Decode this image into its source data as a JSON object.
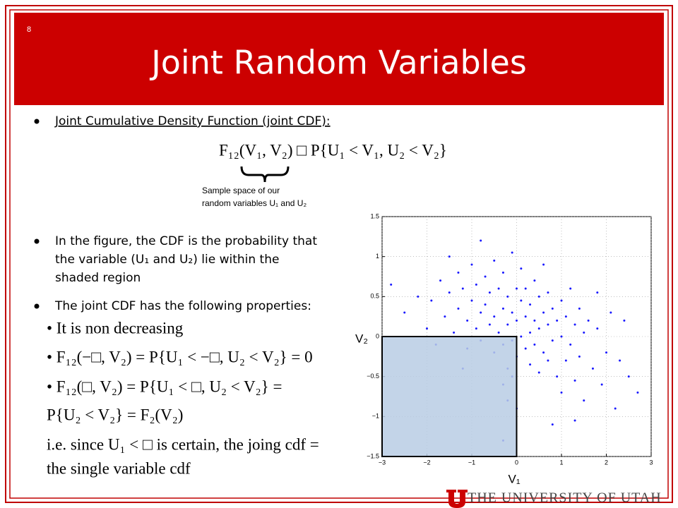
{
  "slide_number": "8",
  "title": "Joint Random Variables",
  "bullets": [
    {
      "lines": [
        "Joint Cumulative Density Function (joint CDF):"
      ]
    },
    {
      "lines": [
        "In the figure, the CDF is the probability that",
        "the variable (U₁ and U₂) lie within the",
        "shaded region"
      ]
    },
    {
      "lines": [
        "The joint CDF has the following properties:"
      ]
    }
  ],
  "formula": "F₁₂(V₁, V₂) □ P{U₁ < V₁, U₂ < V₂}",
  "annotation": [
    "Sample space of our",
    "random variables U₁ and U₂"
  ],
  "properties": [
    "• It is non decreasing",
    "• F₁₂(−□, V₂) = P{U₁ < −□, U₂ < V₂} = 0",
    "• F₁₂(□, V₂) = P{U₁ < □, U₂ < V₂} =",
    "P{U₂ < V₂} = F₂(V₂)",
    "i.e. since U₁ < □ is certain, the joing cdf =",
    "the single variable cdf"
  ],
  "footer": "THE UNIVERSITY OF UTAH",
  "chart_data": {
    "type": "scatter",
    "color": "#1a1aff",
    "grid": true,
    "xlim": [
      -3,
      3
    ],
    "ylim": [
      -1.5,
      1.5
    ],
    "xticks": [
      {
        "value": -3,
        "label": "−3"
      },
      {
        "value": -2,
        "label": "−2"
      },
      {
        "value": -1,
        "label": "−1"
      },
      0,
      1,
      2,
      3
    ],
    "yticks": [
      {
        "value": -1.5,
        "label": "−1.5"
      },
      {
        "value": -1,
        "label": "−1"
      },
      {
        "value": -0.5,
        "label": "−0.5"
      },
      0,
      0.5,
      1,
      1.5
    ],
    "region": {
      "x": [
        -3,
        0
      ],
      "y": [
        -1.5,
        0
      ],
      "color": "#b8cce4"
    },
    "region_labels": {
      "x": "V₁",
      "y": "V₂"
    },
    "x": [
      -2.5,
      -2.2,
      -2.0,
      -1.9,
      -1.8,
      -1.7,
      -1.6,
      -1.5,
      -1.4,
      -1.3,
      -1.3,
      -1.2,
      -1.1,
      -1.1,
      -1.0,
      -1.0,
      -0.9,
      -0.9,
      -0.8,
      -0.8,
      -0.7,
      -0.7,
      -0.6,
      -0.6,
      -0.5,
      -0.5,
      -0.5,
      -0.4,
      -0.4,
      -0.3,
      -0.3,
      -0.3,
      -0.2,
      -0.2,
      -0.2,
      -0.1,
      -0.1,
      -0.1,
      0.0,
      0.0,
      0.0,
      0.1,
      0.1,
      0.1,
      0.2,
      0.2,
      0.2,
      0.3,
      0.3,
      0.3,
      0.4,
      0.4,
      0.4,
      0.5,
      0.5,
      0.5,
      0.6,
      0.6,
      0.6,
      0.7,
      0.7,
      0.7,
      0.8,
      0.8,
      0.9,
      0.9,
      1.0,
      1.0,
      1.0,
      1.1,
      1.1,
      1.2,
      1.2,
      1.3,
      1.3,
      1.4,
      1.4,
      1.5,
      1.5,
      1.6,
      1.7,
      1.8,
      1.9,
      2.0,
      2.1,
      2.2,
      2.3,
      2.5,
      2.7,
      -0.3,
      -0.2,
      -0.1,
      -0.3,
      0.0,
      0.8,
      1.3,
      -1.5,
      -0.8,
      1.8,
      2.4,
      -2.8,
      -1.2
    ],
    "y": [
      0.3,
      0.5,
      0.1,
      0.45,
      -0.1,
      0.7,
      0.25,
      0.55,
      0.05,
      0.8,
      0.35,
      0.6,
      0.2,
      -0.15,
      0.9,
      0.45,
      0.1,
      0.65,
      0.3,
      -0.05,
      0.75,
      0.4,
      0.15,
      0.55,
      0.95,
      0.25,
      -0.2,
      0.6,
      0.05,
      0.35,
      0.8,
      -0.1,
      0.5,
      0.15,
      -0.4,
      1.05,
      0.3,
      -0.05,
      0.6,
      0.2,
      -0.25,
      0.45,
      0.0,
      0.85,
      0.25,
      -0.15,
      0.6,
      0.4,
      0.05,
      -0.35,
      0.7,
      0.2,
      -0.1,
      0.5,
      0.1,
      -0.45,
      0.3,
      -0.2,
      0.9,
      0.15,
      0.55,
      -0.3,
      0.35,
      -0.05,
      0.2,
      -0.5,
      0.45,
      0.0,
      -0.7,
      0.25,
      -0.3,
      0.6,
      -0.1,
      0.15,
      -0.55,
      0.35,
      -0.25,
      0.05,
      -0.8,
      0.2,
      -0.4,
      0.1,
      -0.6,
      -0.2,
      0.3,
      -0.9,
      -0.3,
      -0.5,
      -0.7,
      -0.6,
      -0.8,
      -0.5,
      -1.3,
      -0.9,
      -1.1,
      -1.05,
      1.0,
      1.2,
      0.55,
      0.2,
      0.65,
      -0.4
    ]
  }
}
